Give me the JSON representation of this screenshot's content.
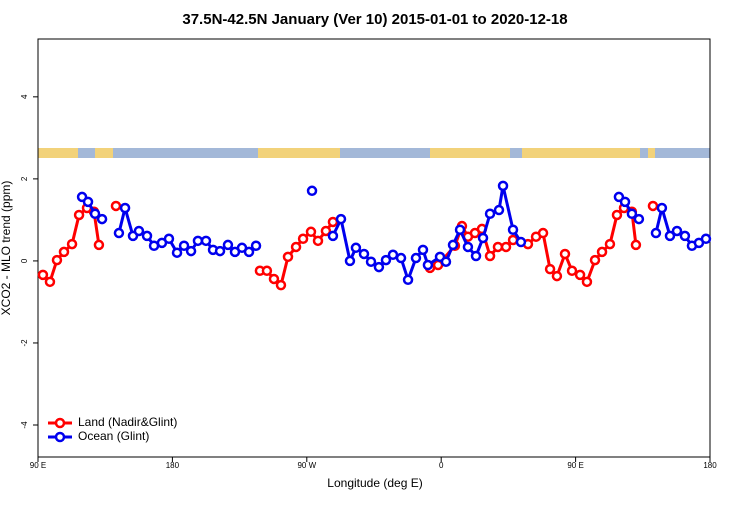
{
  "chart_data": {
    "type": "line",
    "title": "37.5N-42.5N January (Ver 10)   2015-01-01 to 2020-12-18",
    "x_label": "Longitude (deg E)",
    "y_label": "XCO2 - MLO trend (ppm)",
    "xlim": [
      90,
      540
    ],
    "ylim": [
      -4.78,
      5.41
    ],
    "xticks": [
      {
        "value": 90,
        "label": "90 E"
      },
      {
        "value": 180,
        "label": "180"
      },
      {
        "value": 270,
        "label": "90 W"
      },
      {
        "value": 360,
        "label": "0"
      },
      {
        "value": 450,
        "label": "90 E"
      },
      {
        "value": 540,
        "label": "180"
      }
    ],
    "yticks": [
      -4,
      -2,
      0,
      2,
      4
    ],
    "legend": "bottom-left",
    "series": [
      {
        "name": "Land (Nadir&Glint)",
        "color": "#ff0000",
        "x": [
          93.3,
          98.0,
          102.7,
          107.4,
          112.8,
          117.5,
          122.8,
          127.5,
          130.8,
          null,
          142.2,
          null,
          238.6,
          243.3,
          248.0,
          252.7,
          257.4,
          262.8,
          267.5,
          272.8,
          277.5,
          282.8,
          287.5,
          null,
          352.5,
          357.9,
          369.2,
          373.9,
          377.9,
          382.6,
          387.3,
          392.7,
          398.0,
          403.4,
          408.1,
          418.1,
          423.5,
          428.2,
          432.9,
          437.5,
          442.9,
          447.6,
          453.0,
          457.6,
          463.0,
          467.7,
          473.0,
          477.7,
          482.4,
          487.7,
          490.4,
          null,
          501.8
        ],
        "values": [
          -0.34,
          -0.51,
          0.02,
          0.22,
          0.41,
          1.12,
          1.29,
          1.2,
          0.39,
          null,
          1.34,
          null,
          -0.24,
          -0.24,
          -0.44,
          -0.59,
          0.1,
          0.34,
          0.54,
          0.71,
          0.49,
          0.73,
          0.95,
          null,
          -0.17,
          -0.1,
          0.37,
          0.85,
          0.59,
          0.68,
          0.78,
          0.12,
          0.34,
          0.34,
          0.51,
          0.41,
          0.59,
          0.68,
          -0.2,
          -0.37,
          0.17,
          -0.24,
          -0.34,
          -0.51,
          0.02,
          0.22,
          0.41,
          1.12,
          1.29,
          1.2,
          0.39,
          null,
          1.34
        ]
      },
      {
        "name": "Ocean (Glint)",
        "color": "#0000ee",
        "x": [
          119.5,
          123.5,
          128.2,
          132.9,
          null,
          144.2,
          148.3,
          153.6,
          157.6,
          163.0,
          167.7,
          173.0,
          177.7,
          183.1,
          187.8,
          192.5,
          197.1,
          202.5,
          207.2,
          211.9,
          217.2,
          221.9,
          226.6,
          231.3,
          236.0,
          null,
          273.5,
          null,
          287.5,
          292.9,
          298.9,
          302.9,
          308.3,
          313.0,
          318.3,
          323.0,
          327.7,
          333.1,
          337.8,
          343.1,
          347.8,
          351.1,
          359.2,
          363.2,
          367.9,
          372.6,
          377.9,
          383.3,
          388.0,
          392.7,
          398.7,
          401.4,
          408.1,
          413.4,
          null,
          479.0,
          483.1,
          487.7,
          492.4,
          null,
          503.8,
          507.8,
          513.2,
          517.9,
          523.2,
          527.9,
          532.6,
          537.3
        ],
        "values": [
          1.56,
          1.44,
          1.15,
          1.02,
          null,
          0.68,
          1.29,
          0.61,
          0.73,
          0.61,
          0.37,
          0.44,
          0.54,
          0.2,
          0.37,
          0.24,
          0.49,
          0.49,
          0.27,
          0.24,
          0.39,
          0.22,
          0.32,
          0.22,
          0.37,
          null,
          1.71,
          null,
          0.61,
          1.02,
          0,
          0.32,
          0.17,
          -0.02,
          -0.15,
          0.02,
          0.15,
          0.07,
          -0.46,
          0.07,
          0.27,
          -0.1,
          0.1,
          -0.02,
          0.39,
          0.76,
          0.34,
          0.12,
          0.56,
          1.15,
          1.24,
          1.83,
          0.76,
          0.46,
          null,
          1.56,
          1.44,
          1.15,
          1.02,
          null,
          0.68,
          1.29,
          0.61,
          0.73,
          0.61,
          0.37,
          0.44,
          0.54
        ]
      }
    ]
  }
}
